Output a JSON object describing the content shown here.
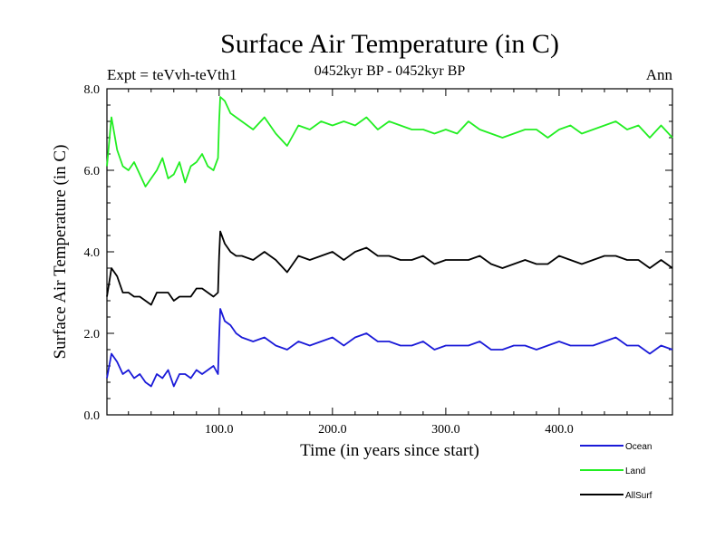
{
  "chart_data": {
    "type": "line",
    "title": "Surface Air Temperature (in C)",
    "subtitle": "0452kyr BP - 0452kyr BP",
    "expt_label": "Expt = teVvh-teVth1",
    "season_label": "Ann",
    "xlabel": "Time (in years since start)",
    "ylabel": "Surface Air Temperature (in C)",
    "xlim": [
      1,
      500
    ],
    "ylim": [
      0,
      8
    ],
    "x_ticks": [
      100,
      200,
      300,
      400
    ],
    "x_tick_labels": [
      "100.0",
      "200.0",
      "300.0",
      "400.0"
    ],
    "y_ticks": [
      0,
      2,
      4,
      6,
      8
    ],
    "y_tick_labels": [
      "0.0",
      "2.0",
      "4.0",
      "6.0",
      "8.0"
    ],
    "grid": false,
    "legend_position": "bottom-right",
    "series": [
      {
        "name": "Ocean",
        "color": "#1a1ad8",
        "x": [
          1,
          5,
          10,
          15,
          20,
          25,
          30,
          35,
          40,
          45,
          50,
          55,
          60,
          65,
          70,
          75,
          80,
          85,
          90,
          95,
          99,
          100,
          101,
          105,
          110,
          115,
          120,
          130,
          140,
          150,
          160,
          170,
          180,
          190,
          200,
          210,
          220,
          230,
          240,
          250,
          260,
          270,
          280,
          290,
          300,
          310,
          320,
          330,
          340,
          350,
          360,
          370,
          380,
          390,
          400,
          410,
          420,
          430,
          440,
          450,
          460,
          470,
          480,
          490,
          500
        ],
        "values": [
          0.9,
          1.5,
          1.3,
          1.0,
          1.1,
          0.9,
          1.0,
          0.8,
          0.7,
          1.0,
          0.9,
          1.1,
          0.7,
          1.0,
          1.0,
          0.9,
          1.1,
          1.0,
          1.1,
          1.2,
          1.0,
          1.9,
          2.6,
          2.3,
          2.2,
          2.0,
          1.9,
          1.8,
          1.9,
          1.7,
          1.6,
          1.8,
          1.7,
          1.8,
          1.9,
          1.7,
          1.9,
          2.0,
          1.8,
          1.8,
          1.7,
          1.7,
          1.8,
          1.6,
          1.7,
          1.7,
          1.7,
          1.8,
          1.6,
          1.6,
          1.7,
          1.7,
          1.6,
          1.7,
          1.8,
          1.7,
          1.7,
          1.7,
          1.8,
          1.9,
          1.7,
          1.7,
          1.5,
          1.7,
          1.6
        ]
      },
      {
        "name": "Land",
        "color": "#22ee22",
        "x": [
          1,
          5,
          10,
          15,
          20,
          25,
          30,
          35,
          40,
          45,
          50,
          55,
          60,
          65,
          70,
          75,
          80,
          85,
          90,
          95,
          99,
          100,
          101,
          105,
          110,
          115,
          120,
          130,
          140,
          150,
          160,
          170,
          180,
          190,
          200,
          210,
          220,
          230,
          240,
          250,
          260,
          270,
          280,
          290,
          300,
          310,
          320,
          330,
          340,
          350,
          360,
          370,
          380,
          390,
          400,
          410,
          420,
          430,
          440,
          450,
          460,
          470,
          480,
          490,
          500
        ],
        "values": [
          6.1,
          7.3,
          6.5,
          6.1,
          6.0,
          6.2,
          5.9,
          5.6,
          5.8,
          6.0,
          6.3,
          5.8,
          5.9,
          6.2,
          5.7,
          6.1,
          6.2,
          6.4,
          6.1,
          6.0,
          6.3,
          7.2,
          7.8,
          7.7,
          7.4,
          7.3,
          7.2,
          7.0,
          7.3,
          6.9,
          6.6,
          7.1,
          7.0,
          7.2,
          7.1,
          7.2,
          7.1,
          7.3,
          7.0,
          7.2,
          7.1,
          7.0,
          7.0,
          6.9,
          7.0,
          6.9,
          7.2,
          7.0,
          6.9,
          6.8,
          6.9,
          7.0,
          7.0,
          6.8,
          7.0,
          7.1,
          6.9,
          7.0,
          7.1,
          7.2,
          7.0,
          7.1,
          6.8,
          7.1,
          6.8
        ]
      },
      {
        "name": "AllSurf",
        "color": "#000000",
        "x": [
          1,
          5,
          10,
          15,
          20,
          25,
          30,
          35,
          40,
          45,
          50,
          55,
          60,
          65,
          70,
          75,
          80,
          85,
          90,
          95,
          99,
          100,
          101,
          105,
          110,
          115,
          120,
          130,
          140,
          150,
          160,
          170,
          180,
          190,
          200,
          210,
          220,
          230,
          240,
          250,
          260,
          270,
          280,
          290,
          300,
          310,
          320,
          330,
          340,
          350,
          360,
          370,
          380,
          390,
          400,
          410,
          420,
          430,
          440,
          450,
          460,
          470,
          480,
          490,
          500
        ],
        "values": [
          2.9,
          3.6,
          3.4,
          3.0,
          3.0,
          2.9,
          2.9,
          2.8,
          2.7,
          3.0,
          3.0,
          3.0,
          2.8,
          2.9,
          2.9,
          2.9,
          3.1,
          3.1,
          3.0,
          2.9,
          3.0,
          3.9,
          4.5,
          4.2,
          4.0,
          3.9,
          3.9,
          3.8,
          4.0,
          3.8,
          3.5,
          3.9,
          3.8,
          3.9,
          4.0,
          3.8,
          4.0,
          4.1,
          3.9,
          3.9,
          3.8,
          3.8,
          3.9,
          3.7,
          3.8,
          3.8,
          3.8,
          3.9,
          3.7,
          3.6,
          3.7,
          3.8,
          3.7,
          3.7,
          3.9,
          3.8,
          3.7,
          3.8,
          3.9,
          3.9,
          3.8,
          3.8,
          3.6,
          3.8,
          3.6
        ]
      }
    ],
    "legend_order": [
      "Ocean",
      "Land",
      "AllSurf"
    ]
  }
}
